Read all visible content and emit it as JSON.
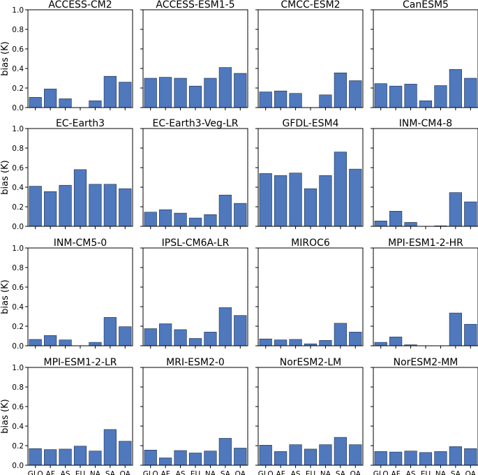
{
  "chart_data": {
    "type": "bar",
    "layout": "4x4 small multiples",
    "categories": [
      "GLO",
      "AF",
      "AS",
      "EU",
      "NA",
      "SA",
      "OA"
    ],
    "ylabel": "bias (K)",
    "ylim": [
      0,
      1.0
    ],
    "yticks": [
      "0.0",
      "0.2",
      "0.4",
      "0.6",
      "0.8",
      "1.0"
    ],
    "bar_color": "#4f78bd",
    "panels": [
      {
        "title": "ACCESS-CM2",
        "values": [
          0.105,
          0.19,
          0.09,
          0.0,
          0.07,
          0.32,
          0.26
        ]
      },
      {
        "title": "ACCESS-ESM1-5",
        "values": [
          0.3,
          0.31,
          0.3,
          0.22,
          0.3,
          0.41,
          0.35
        ]
      },
      {
        "title": "CMCC-ESM2",
        "values": [
          0.16,
          0.17,
          0.145,
          0.0,
          0.13,
          0.355,
          0.275
        ]
      },
      {
        "title": "CanESM5",
        "values": [
          0.245,
          0.22,
          0.24,
          0.07,
          0.225,
          0.39,
          0.3
        ]
      },
      {
        "title": "EC-Earth3",
        "values": [
          0.41,
          0.355,
          0.42,
          0.58,
          0.43,
          0.43,
          0.385
        ]
      },
      {
        "title": "EC-Earth3-Veg-LR",
        "values": [
          0.145,
          0.17,
          0.135,
          0.085,
          0.12,
          0.32,
          0.235
        ]
      },
      {
        "title": "GFDL-ESM4",
        "values": [
          0.54,
          0.52,
          0.545,
          0.385,
          0.52,
          0.76,
          0.585
        ]
      },
      {
        "title": "INM-CM4-8",
        "values": [
          0.055,
          0.155,
          0.04,
          0.0,
          0.005,
          0.345,
          0.25
        ]
      },
      {
        "title": "INM-CM5-0",
        "values": [
          0.065,
          0.105,
          0.06,
          0.0,
          0.035,
          0.29,
          0.195
        ]
      },
      {
        "title": "IPSL-CM6A-LR",
        "values": [
          0.175,
          0.225,
          0.165,
          0.075,
          0.14,
          0.39,
          0.31
        ]
      },
      {
        "title": "MIROC6",
        "values": [
          0.07,
          0.06,
          0.065,
          0.02,
          0.055,
          0.23,
          0.14
        ]
      },
      {
        "title": "MPI-ESM1-2-HR",
        "values": [
          0.035,
          0.09,
          0.01,
          0.0,
          0.0,
          0.335,
          0.22
        ]
      },
      {
        "title": "MPI-ESM1-2-LR",
        "values": [
          0.17,
          0.16,
          0.165,
          0.195,
          0.145,
          0.365,
          0.245
        ]
      },
      {
        "title": "MRI-ESM2-0",
        "values": [
          0.155,
          0.075,
          0.15,
          0.125,
          0.145,
          0.275,
          0.175
        ]
      },
      {
        "title": "NorESM2-LM",
        "values": [
          0.205,
          0.14,
          0.21,
          0.165,
          0.21,
          0.285,
          0.21
        ]
      },
      {
        "title": "NorESM2-MM",
        "values": [
          0.14,
          0.135,
          0.145,
          0.13,
          0.14,
          0.19,
          0.17
        ]
      }
    ]
  }
}
